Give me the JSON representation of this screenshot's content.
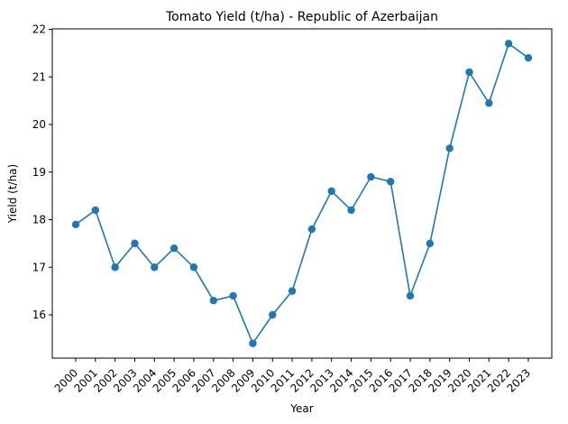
{
  "chart_data": {
    "type": "line",
    "title": "Tomato Yield (t/ha) - Republic of Azerbaijan",
    "xlabel": "Year",
    "ylabel": "Yield (t/ha)",
    "categories": [
      "2000",
      "2001",
      "2002",
      "2003",
      "2004",
      "2005",
      "2006",
      "2007",
      "2008",
      "2009",
      "2010",
      "2011",
      "2012",
      "2013",
      "2014",
      "2015",
      "2016",
      "2017",
      "2018",
      "2019",
      "2020",
      "2021",
      "2022",
      "2023"
    ],
    "series": [
      {
        "values": [
          17.9,
          18.2,
          17.0,
          17.5,
          17.0,
          17.4,
          17.0,
          16.3,
          16.4,
          15.4,
          16.0,
          16.5,
          17.8,
          18.6,
          18.2,
          18.9,
          18.8,
          16.4,
          17.5,
          19.5,
          21.1,
          20.45,
          21.7,
          21.4
        ],
        "color": "#1f77b4"
      }
    ],
    "yticks": [
      16,
      17,
      18,
      19,
      20,
      21,
      22
    ],
    "ylim": [
      15.09,
      22.01
    ],
    "grid": false,
    "marker": "circle"
  }
}
